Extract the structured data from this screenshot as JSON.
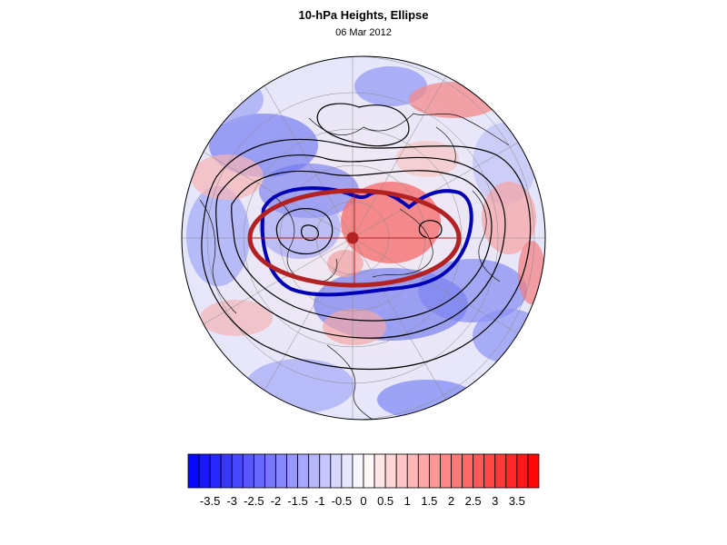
{
  "title": "10-hPa Heights, Ellipse",
  "subtitle": "06 Mar 2012",
  "colorbar": {
    "tick_labels": [
      "-3.5",
      "-3",
      "-2.5",
      "-2",
      "-1.5",
      "-1",
      "-0.5",
      "0",
      "0.5",
      "1",
      "1.5",
      "2",
      "2.5",
      "3",
      "3.5"
    ],
    "min": -4,
    "max": 4,
    "levels": 32,
    "negative_color": "#0000ff",
    "positive_color": "#ff0000",
    "neutral_color": "#ffffff"
  },
  "colors": {
    "ellipse_red": "#b22222",
    "contour_blue": "#0000b4",
    "contour_black": "#000000",
    "center_dot": "#b22222"
  }
}
